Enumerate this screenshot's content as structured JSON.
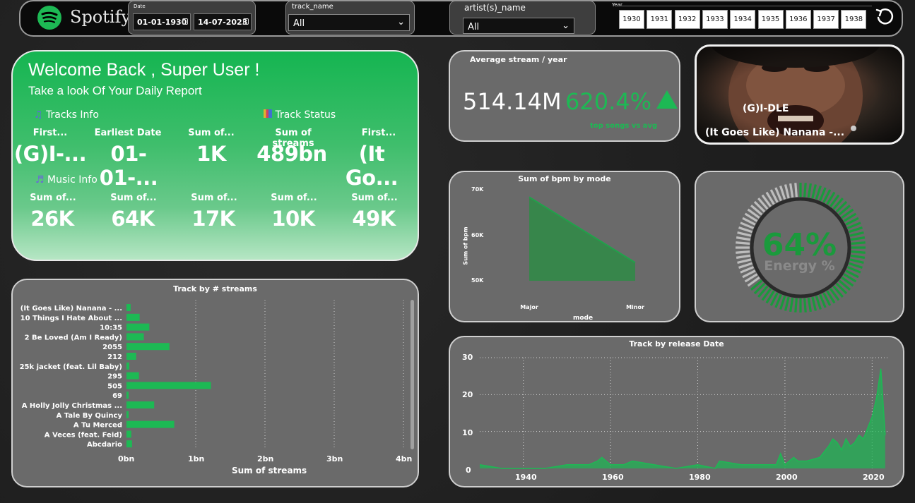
{
  "app": {
    "brand": "Spotify"
  },
  "filters": {
    "date": {
      "title": "Date",
      "start": "01-01-1930",
      "end": "14-07-2023"
    },
    "track": {
      "title": "track_name",
      "value": "All"
    },
    "artist": {
      "title": "artist(s)_name",
      "value": "All"
    },
    "year": {
      "title": "Year",
      "chips": [
        "1930",
        "1931",
        "1932",
        "1933",
        "1934",
        "1935",
        "1936",
        "1937",
        "1938"
      ]
    }
  },
  "welcome": {
    "title": "Welcome Back , Super User !",
    "subtitle": "Take a look Of Your Daily Report",
    "tracks_info": "Tracks Info",
    "track_status": "Track Status",
    "music_info": "Music Info",
    "row1": [
      {
        "label": "First...",
        "value": "(G)I-..."
      },
      {
        "label": "Earliest Date",
        "value": "01-01-..."
      },
      {
        "label": "Sum of...",
        "value": "1K"
      },
      {
        "label": "Sum of streams",
        "value": "489bn"
      },
      {
        "label": "First...",
        "value": "(It Go..."
      }
    ],
    "row2": [
      {
        "label": "Sum of...",
        "value": "26K"
      },
      {
        "label": "Sum of...",
        "value": "64K"
      },
      {
        "label": "Sum of...",
        "value": "17K"
      },
      {
        "label": "Sum of...",
        "value": "10K"
      },
      {
        "label": "Sum of...",
        "value": "49K"
      }
    ]
  },
  "avg_stream": {
    "title": "Average stream / year",
    "value": "514.14M",
    "percent": "620.4%",
    "caption": "top songs vs avg",
    "accent": "#1db954"
  },
  "artist_card": {
    "artist": "(G)I-DLE",
    "track": "(It Goes Like) Nanana -..."
  },
  "energy": {
    "value": "64%",
    "label": "Energy %",
    "fraction": 0.64,
    "color": "#1a9a3c"
  },
  "charts": {
    "bpm": {
      "title": "Sum of bpm by mode",
      "xlabel": "mode",
      "ylabel": "Sum of bpm",
      "yticks": [
        "70K",
        "60K",
        "50K"
      ]
    },
    "streams": {
      "title": "Track by # streams",
      "xlabel": "Sum of streams",
      "xticks": [
        "0bn",
        "1bn",
        "2bn",
        "3bn",
        "4bn"
      ]
    },
    "release": {
      "title": "Track by release Date",
      "xticks": [
        "1940",
        "1960",
        "1980",
        "2000",
        "2020"
      ],
      "yticks": [
        "30",
        "20",
        "10",
        "0"
      ]
    }
  },
  "chart_data": [
    {
      "type": "area",
      "title": "Sum of bpm by mode",
      "xlabel": "mode",
      "ylabel": "Sum of bpm",
      "categories": [
        "Major",
        "Minor"
      ],
      "values": [
        68000,
        50000
      ],
      "ylim": [
        45000,
        70000
      ],
      "color": "#2e8b45"
    },
    {
      "type": "bar",
      "orientation": "horizontal",
      "title": "Track by # streams",
      "xlabel": "Sum of streams",
      "categories": [
        "(It Goes Like) Nanana - ...",
        "10 Things I Hate About ...",
        "10:35",
        "2 Be Loved (Am I Ready)",
        "2055",
        "212",
        "25k jacket (feat. Lil Baby)",
        "295",
        "505",
        "69",
        "A Holly Jolly Christmas ...",
        "A Tale By Quincy",
        "A Tu Merced",
        "A Veces (feat. Feid)",
        "Abcdario"
      ],
      "values": [
        0.06,
        0.19,
        0.33,
        0.25,
        0.62,
        0.14,
        0.04,
        0.18,
        1.22,
        0.02,
        0.4,
        0.03,
        0.69,
        0.07,
        0.08
      ],
      "xlim": [
        0,
        4
      ],
      "unit": "bn",
      "color": "#1db954"
    },
    {
      "type": "area",
      "title": "Track by release Date",
      "x": [
        1930,
        1935,
        1940,
        1945,
        1950,
        1955,
        1957,
        1958,
        1960,
        1963,
        1965,
        1970,
        1975,
        1980,
        1984,
        1985,
        1990,
        1995,
        1998,
        1999,
        2000,
        2002,
        2003,
        2005,
        2008,
        2010,
        2011,
        2012,
        2013,
        2014,
        2015,
        2016,
        2017,
        2018,
        2019,
        2020,
        2021,
        2022,
        2023
      ],
      "values": [
        1,
        0,
        0,
        0,
        1,
        1,
        2,
        3,
        1,
        1,
        2,
        1,
        0,
        1,
        0,
        2,
        1,
        1,
        1,
        4,
        1,
        3,
        2,
        2,
        3,
        6,
        8,
        7,
        5,
        8,
        6,
        7,
        9,
        8,
        11,
        14,
        19,
        27,
        9
      ],
      "xlim": [
        1930,
        2024
      ],
      "ylim": [
        0,
        30
      ],
      "color": "#1db954"
    }
  ]
}
